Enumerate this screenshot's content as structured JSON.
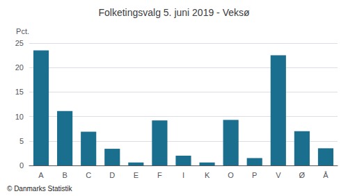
{
  "chart_data": {
    "type": "bar",
    "title": "Folketingsvalg 5. juni 2019 - Veksø",
    "categories": [
      "A",
      "B",
      "C",
      "D",
      "E",
      "F",
      "I",
      "K",
      "O",
      "P",
      "V",
      "Ø",
      "Å"
    ],
    "values": [
      23.5,
      11.1,
      6.9,
      3.4,
      0.6,
      9.2,
      2.0,
      0.6,
      9.3,
      1.5,
      22.5,
      7.0,
      3.5
    ],
    "color": "#1a6e8e",
    "ylabel": "Pct.",
    "ylim": [
      0,
      25
    ],
    "yticks": [
      0,
      5,
      10,
      15,
      20,
      25
    ],
    "grid": true,
    "annotations": [
      "© Danmarks Statistik"
    ]
  }
}
